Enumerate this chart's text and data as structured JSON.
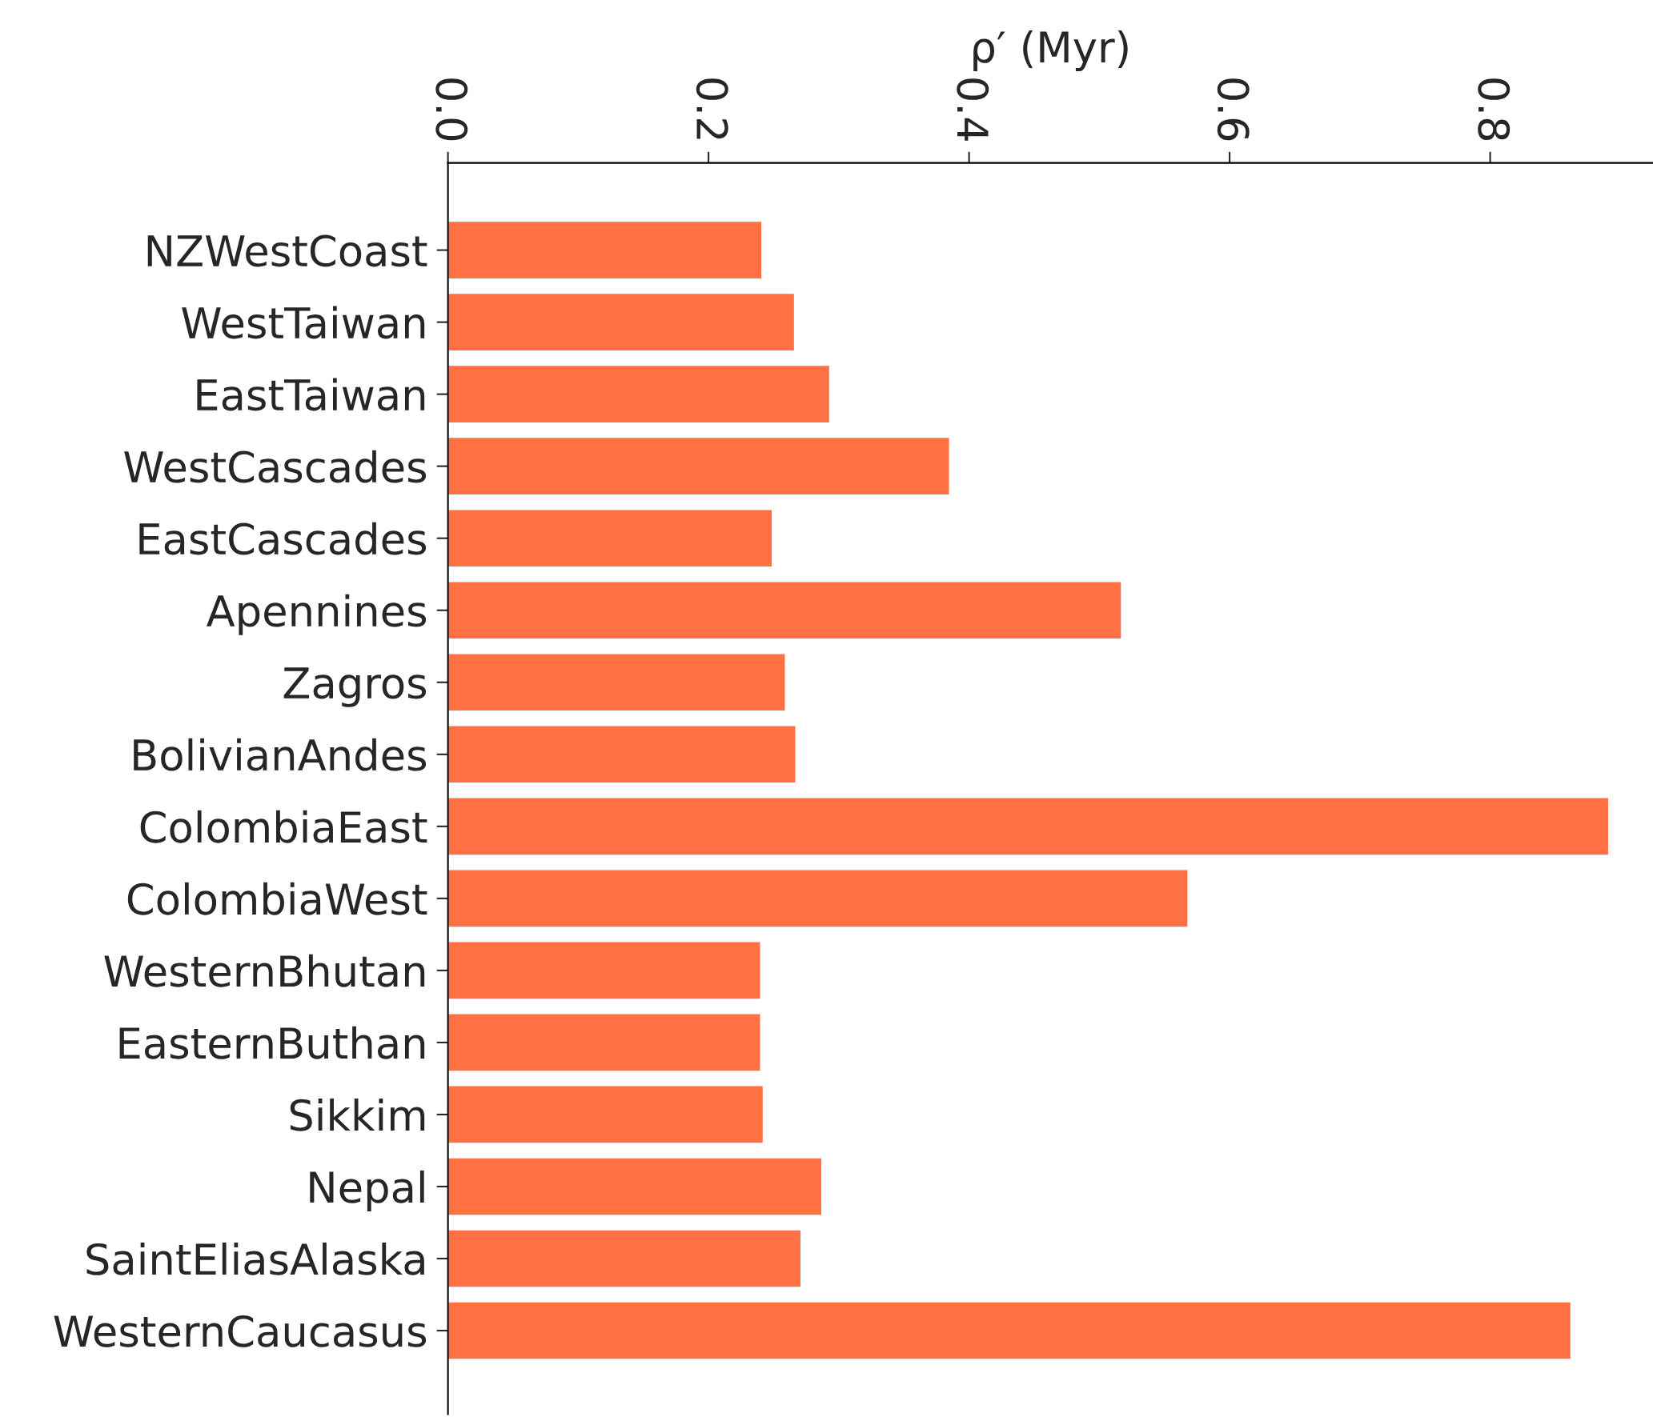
{
  "chart_data": {
    "type": "bar",
    "orientation": "horizontal",
    "xlabel": "ρ′ (Myr)",
    "categories": [
      "NZWestCoast",
      "WestTaiwan",
      "EastTaiwan",
      "WestCascades",
      "EastCascades",
      "Apennines",
      "Zagros",
      "BolivianAndes",
      "ColombiaEast",
      "ColombiaWest",
      "WesternBhutan",
      "EasternButhan",
      "Sikkim",
      "Nepal",
      "SaintEliasAlaska",
      "WesternCaucasus"
    ],
    "values": [
      0.241,
      0.266,
      0.293,
      0.385,
      0.249,
      0.517,
      0.259,
      0.267,
      0.891,
      0.568,
      0.24,
      0.24,
      0.242,
      0.287,
      0.271,
      0.862
    ],
    "color": "#ff7043",
    "xlim": [
      0,
      0.925
    ],
    "xticks": [
      {
        "value": 0,
        "label": "0.0"
      },
      0.2,
      0.4,
      0.6,
      0.8
    ],
    "grid": false,
    "legend": false
  }
}
